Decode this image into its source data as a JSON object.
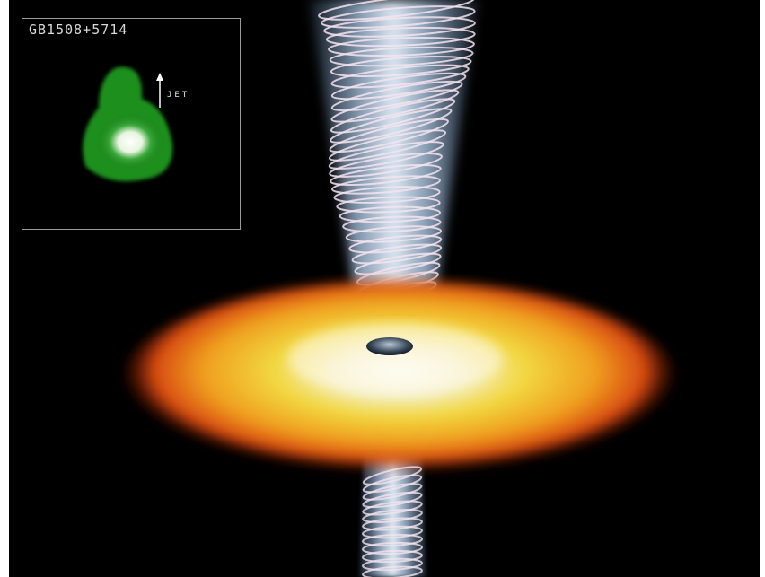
{
  "inset": {
    "title": "GB1508+5714",
    "jet_label": "JET"
  }
}
